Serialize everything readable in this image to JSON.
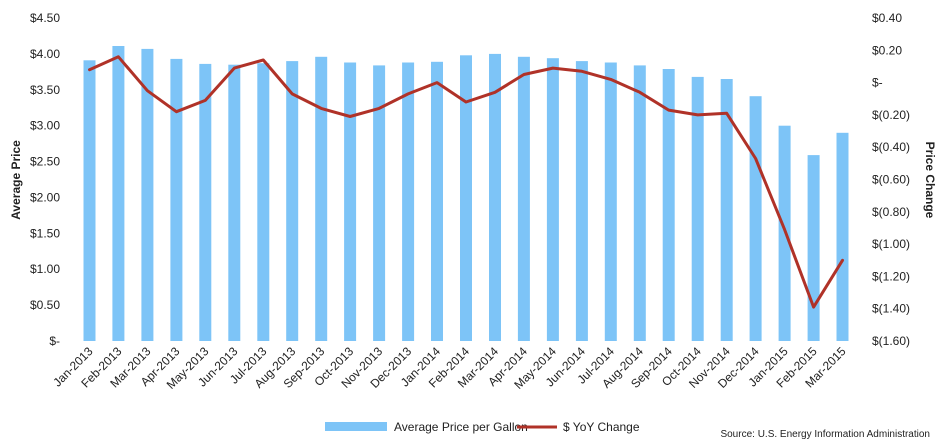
{
  "chart_data": {
    "type": "bar+line",
    "categories": [
      "Jan-2013",
      "Feb-2013",
      "Mar-2013",
      "Apr-2013",
      "May-2013",
      "Jun-2013",
      "Jul-2013",
      "Aug-2013",
      "Sep-2013",
      "Oct-2013",
      "Nov-2013",
      "Dec-2013",
      "Jan-2014",
      "Feb-2014",
      "Mar-2014",
      "Apr-2014",
      "May-2014",
      "Jun-2014",
      "Jul-2014",
      "Aug-2014",
      "Sep-2014",
      "Oct-2014",
      "Nov-2014",
      "Dec-2014",
      "Jan-2015",
      "Feb-2015",
      "Mar-2015"
    ],
    "series": [
      {
        "name": "Average Price per Gallon",
        "type": "bar",
        "axis": "left",
        "color": "#7dc4f7",
        "values": [
          3.91,
          4.11,
          4.07,
          3.93,
          3.86,
          3.85,
          3.87,
          3.9,
          3.96,
          3.88,
          3.84,
          3.88,
          3.89,
          3.98,
          4.0,
          3.96,
          3.94,
          3.9,
          3.88,
          3.84,
          3.79,
          3.68,
          3.65,
          3.41,
          3.0,
          2.59,
          2.9
        ]
      },
      {
        "name": "$ YoY Change",
        "type": "line",
        "axis": "right",
        "color": "#b03228",
        "values": [
          0.08,
          0.16,
          -0.05,
          -0.18,
          -0.11,
          0.09,
          0.14,
          -0.07,
          -0.16,
          -0.21,
          -0.16,
          -0.07,
          0.0,
          -0.12,
          -0.06,
          0.05,
          0.09,
          0.07,
          0.02,
          -0.06,
          -0.17,
          -0.2,
          -0.19,
          -0.47,
          -0.91,
          -1.39,
          -1.1
        ]
      }
    ],
    "ylabel": "Average Price",
    "y2label": "Price Change",
    "ylim": [
      0,
      4.5
    ],
    "y2lim": [
      -1.6,
      0.4
    ],
    "yticks": [
      "$-",
      "$0.50",
      "$1.00",
      "$1.50",
      "$2.00",
      "$2.50",
      "$3.00",
      "$3.50",
      "$4.00",
      "$4.50"
    ],
    "y2ticks": [
      "$(1.60)",
      "$(1.40)",
      "$(1.20)",
      "$(1.00)",
      "$(0.80)",
      "$(0.60)",
      "$(0.40)",
      "$(0.20)",
      "$-",
      "$0.20",
      "$0.40"
    ],
    "legend_position": "bottom",
    "grid": false,
    "source": "Source: U.S. Energy Information Administration"
  }
}
